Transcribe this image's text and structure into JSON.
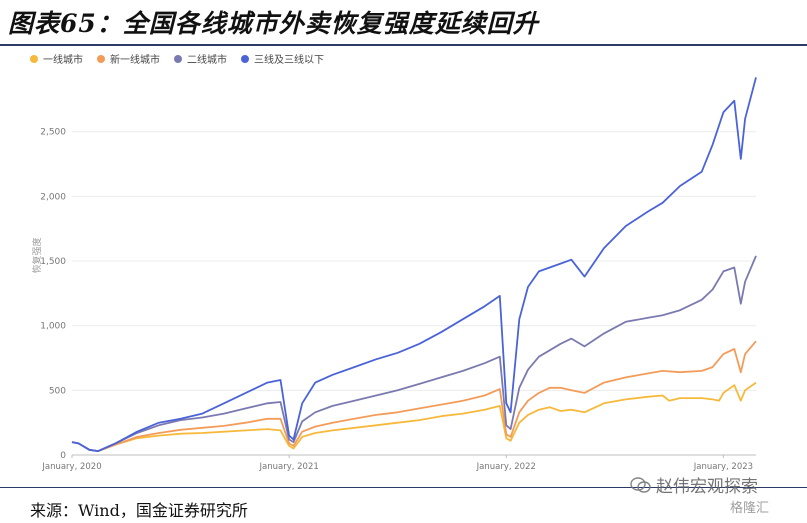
{
  "figure_title": "图表65：全国各线城市外卖恢复强度延续回升",
  "source_text": "来源：Wind，国金证券研究所",
  "watermark_text": "赵伟宏观探索",
  "watermark2_text": "格隆汇",
  "colors": {
    "tier1": "#f6b93b",
    "newtier1": "#f39c5a",
    "tier2": "#7b7ab0",
    "tier3": "#4a63d9",
    "rule": "#2b3a67"
  },
  "chart_data": {
    "type": "line",
    "title": "",
    "xlabel": "",
    "ylabel": "恢复强度",
    "ylim": [
      0,
      2900
    ],
    "yticks": [
      0,
      500,
      1000,
      1500,
      2000,
      2500
    ],
    "ytick_labels": [
      "0",
      "500",
      "1,000",
      "1,500",
      "2,000",
      "2,500"
    ],
    "xlim": [
      2020.0,
      2023.15
    ],
    "xticks": [
      2020.0,
      2021.0,
      2022.0,
      2023.0
    ],
    "xtick_labels": [
      "January, 2020",
      "January, 2021",
      "January, 2022",
      "January, 2023"
    ],
    "grid": "horizontal",
    "legend_position": "top-left",
    "series": [
      {
        "name": "一线城市",
        "color": "#f6b93b",
        "points": [
          [
            2020.0,
            100
          ],
          [
            2020.03,
            90
          ],
          [
            2020.08,
            40
          ],
          [
            2020.12,
            30
          ],
          [
            2020.2,
            80
          ],
          [
            2020.3,
            130
          ],
          [
            2020.4,
            150
          ],
          [
            2020.5,
            165
          ],
          [
            2020.6,
            170
          ],
          [
            2020.7,
            180
          ],
          [
            2020.8,
            190
          ],
          [
            2020.9,
            200
          ],
          [
            2020.96,
            190
          ],
          [
            2021.0,
            70
          ],
          [
            2021.02,
            50
          ],
          [
            2021.06,
            140
          ],
          [
            2021.12,
            170
          ],
          [
            2021.2,
            190
          ],
          [
            2021.3,
            210
          ],
          [
            2021.4,
            230
          ],
          [
            2021.5,
            250
          ],
          [
            2021.6,
            270
          ],
          [
            2021.7,
            300
          ],
          [
            2021.8,
            320
          ],
          [
            2021.9,
            350
          ],
          [
            2021.97,
            380
          ],
          [
            2022.0,
            130
          ],
          [
            2022.02,
            110
          ],
          [
            2022.06,
            250
          ],
          [
            2022.1,
            310
          ],
          [
            2022.15,
            350
          ],
          [
            2022.2,
            370
          ],
          [
            2022.25,
            340
          ],
          [
            2022.3,
            350
          ],
          [
            2022.36,
            330
          ],
          [
            2022.45,
            400
          ],
          [
            2022.55,
            430
          ],
          [
            2022.65,
            450
          ],
          [
            2022.72,
            460
          ],
          [
            2022.75,
            420
          ],
          [
            2022.8,
            440
          ],
          [
            2022.9,
            440
          ],
          [
            2022.95,
            430
          ],
          [
            2022.98,
            420
          ],
          [
            2023.0,
            480
          ],
          [
            2023.05,
            540
          ],
          [
            2023.08,
            420
          ],
          [
            2023.1,
            500
          ],
          [
            2023.15,
            560
          ]
        ]
      },
      {
        "name": "新一线城市",
        "color": "#f39c5a",
        "points": [
          [
            2020.0,
            100
          ],
          [
            2020.03,
            90
          ],
          [
            2020.08,
            40
          ],
          [
            2020.12,
            30
          ],
          [
            2020.2,
            80
          ],
          [
            2020.3,
            140
          ],
          [
            2020.4,
            170
          ],
          [
            2020.5,
            195
          ],
          [
            2020.6,
            210
          ],
          [
            2020.7,
            225
          ],
          [
            2020.8,
            250
          ],
          [
            2020.9,
            280
          ],
          [
            2020.96,
            280
          ],
          [
            2021.0,
            90
          ],
          [
            2021.02,
            70
          ],
          [
            2021.06,
            180
          ],
          [
            2021.12,
            220
          ],
          [
            2021.2,
            250
          ],
          [
            2021.3,
            280
          ],
          [
            2021.4,
            310
          ],
          [
            2021.5,
            330
          ],
          [
            2021.6,
            360
          ],
          [
            2021.7,
            390
          ],
          [
            2021.8,
            420
          ],
          [
            2021.9,
            460
          ],
          [
            2021.97,
            510
          ],
          [
            2022.0,
            160
          ],
          [
            2022.02,
            140
          ],
          [
            2022.06,
            330
          ],
          [
            2022.1,
            420
          ],
          [
            2022.15,
            480
          ],
          [
            2022.2,
            520
          ],
          [
            2022.25,
            520
          ],
          [
            2022.3,
            500
          ],
          [
            2022.36,
            480
          ],
          [
            2022.45,
            560
          ],
          [
            2022.55,
            600
          ],
          [
            2022.65,
            630
          ],
          [
            2022.72,
            650
          ],
          [
            2022.8,
            640
          ],
          [
            2022.9,
            650
          ],
          [
            2022.95,
            680
          ],
          [
            2023.0,
            780
          ],
          [
            2023.05,
            820
          ],
          [
            2023.08,
            640
          ],
          [
            2023.1,
            780
          ],
          [
            2023.15,
            880
          ]
        ]
      },
      {
        "name": "二线城市",
        "color": "#7b7ab0",
        "points": [
          [
            2020.0,
            100
          ],
          [
            2020.03,
            90
          ],
          [
            2020.08,
            40
          ],
          [
            2020.12,
            30
          ],
          [
            2020.2,
            90
          ],
          [
            2020.3,
            170
          ],
          [
            2020.4,
            230
          ],
          [
            2020.5,
            270
          ],
          [
            2020.6,
            290
          ],
          [
            2020.7,
            320
          ],
          [
            2020.8,
            360
          ],
          [
            2020.9,
            400
          ],
          [
            2020.96,
            410
          ],
          [
            2021.0,
            120
          ],
          [
            2021.02,
            100
          ],
          [
            2021.06,
            260
          ],
          [
            2021.12,
            330
          ],
          [
            2021.2,
            380
          ],
          [
            2021.3,
            420
          ],
          [
            2021.4,
            460
          ],
          [
            2021.5,
            500
          ],
          [
            2021.6,
            550
          ],
          [
            2021.7,
            600
          ],
          [
            2021.8,
            650
          ],
          [
            2021.9,
            710
          ],
          [
            2021.97,
            760
          ],
          [
            2022.0,
            230
          ],
          [
            2022.02,
            200
          ],
          [
            2022.06,
            520
          ],
          [
            2022.1,
            660
          ],
          [
            2022.15,
            760
          ],
          [
            2022.2,
            810
          ],
          [
            2022.25,
            860
          ],
          [
            2022.3,
            900
          ],
          [
            2022.36,
            840
          ],
          [
            2022.45,
            940
          ],
          [
            2022.55,
            1030
          ],
          [
            2022.65,
            1060
          ],
          [
            2022.72,
            1080
          ],
          [
            2022.8,
            1120
          ],
          [
            2022.9,
            1200
          ],
          [
            2022.95,
            1280
          ],
          [
            2023.0,
            1420
          ],
          [
            2023.05,
            1450
          ],
          [
            2023.08,
            1170
          ],
          [
            2023.1,
            1340
          ],
          [
            2023.15,
            1540
          ]
        ]
      },
      {
        "name": "三线及三线以下",
        "color": "#4a63d9",
        "points": [
          [
            2020.0,
            100
          ],
          [
            2020.03,
            90
          ],
          [
            2020.08,
            40
          ],
          [
            2020.12,
            30
          ],
          [
            2020.2,
            90
          ],
          [
            2020.3,
            180
          ],
          [
            2020.4,
            250
          ],
          [
            2020.5,
            280
          ],
          [
            2020.6,
            320
          ],
          [
            2020.7,
            400
          ],
          [
            2020.8,
            480
          ],
          [
            2020.9,
            560
          ],
          [
            2020.96,
            580
          ],
          [
            2021.0,
            150
          ],
          [
            2021.02,
            120
          ],
          [
            2021.06,
            400
          ],
          [
            2021.12,
            560
          ],
          [
            2021.2,
            620
          ],
          [
            2021.3,
            680
          ],
          [
            2021.4,
            740
          ],
          [
            2021.5,
            790
          ],
          [
            2021.6,
            860
          ],
          [
            2021.7,
            950
          ],
          [
            2021.8,
            1050
          ],
          [
            2021.9,
            1150
          ],
          [
            2021.97,
            1230
          ],
          [
            2022.0,
            400
          ],
          [
            2022.02,
            330
          ],
          [
            2022.06,
            1050
          ],
          [
            2022.1,
            1300
          ],
          [
            2022.15,
            1420
          ],
          [
            2022.2,
            1450
          ],
          [
            2022.25,
            1480
          ],
          [
            2022.3,
            1510
          ],
          [
            2022.36,
            1380
          ],
          [
            2022.45,
            1600
          ],
          [
            2022.55,
            1770
          ],
          [
            2022.65,
            1880
          ],
          [
            2022.72,
            1950
          ],
          [
            2022.8,
            2080
          ],
          [
            2022.9,
            2190
          ],
          [
            2022.95,
            2400
          ],
          [
            2023.0,
            2650
          ],
          [
            2023.05,
            2740
          ],
          [
            2023.08,
            2290
          ],
          [
            2023.1,
            2600
          ],
          [
            2023.15,
            2920
          ]
        ]
      }
    ]
  }
}
